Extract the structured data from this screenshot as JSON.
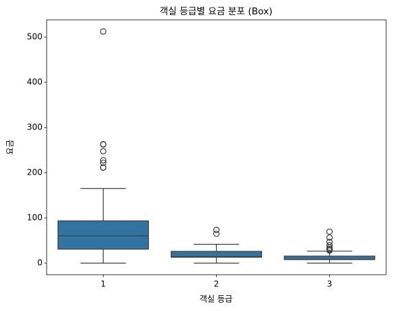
{
  "chart_data": {
    "type": "box",
    "title": "객실 등급별 요금 분포 (Box)",
    "x_label": "객실 등급",
    "y_label": "요금",
    "categories": [
      "1",
      "2",
      "3"
    ],
    "color": "#3274a1",
    "boxes": [
      {
        "whislo": 0,
        "q1": 30.9,
        "med": 60.3,
        "q3": 93.5,
        "whishi": 164.9,
        "fliers": [
          211.3,
          211.5,
          221.8,
          227.5,
          247.5,
          262.4,
          263,
          512.3
        ]
      },
      {
        "whislo": 0,
        "q1": 13,
        "med": 14.3,
        "q3": 26,
        "whishi": 41.6,
        "fliers": [
          65,
          73.5
        ]
      },
      {
        "whislo": 0,
        "q1": 7.8,
        "med": 8.1,
        "q3": 15.5,
        "whishi": 26.6,
        "fliers": [
          27.9,
          29.1,
          31.3,
          34.4,
          39.7,
          46.9,
          56.5,
          69.6
        ]
      }
    ],
    "ylim": [
      -25.6,
      538
    ],
    "yticks": [
      0,
      100,
      200,
      300,
      400,
      500
    ]
  }
}
